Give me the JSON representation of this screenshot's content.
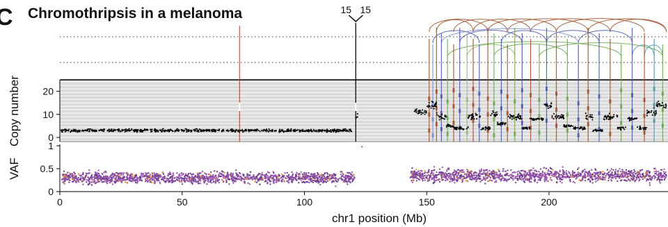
{
  "panel": {
    "letter": "C",
    "title": "Chromothripsis in a melanoma"
  },
  "chart_data": [
    {
      "type": "scatter",
      "panel": "copy-number",
      "ylabel": "Copy number",
      "xlim": [
        0,
        248
      ],
      "ylim": [
        0,
        25
      ],
      "yticks": [
        "0",
        "10",
        "20"
      ],
      "ytick_values": [
        0,
        10,
        20
      ],
      "grid": "horizontal bands",
      "point_color": "#000000",
      "segments": [
        {
          "x": [
            0.5,
            119.5
          ],
          "y": 3
        },
        {
          "x": [
            121,
            121.8
          ],
          "y": 9
        },
        {
          "x": [
            145,
            150
          ],
          "y": 11
        },
        {
          "x": [
            150,
            154
          ],
          "y": 14
        },
        {
          "x": [
            154,
            158
          ],
          "y": 9
        },
        {
          "x": [
            158,
            161
          ],
          "y": 5
        },
        {
          "x": [
            161,
            167
          ],
          "y": 4
        },
        {
          "x": [
            167,
            172
          ],
          "y": 9
        },
        {
          "x": [
            172,
            176
          ],
          "y": 4
        },
        {
          "x": [
            176,
            179
          ],
          "y": 10
        },
        {
          "x": [
            179,
            183
          ],
          "y": 6
        },
        {
          "x": [
            183,
            189
          ],
          "y": 9
        },
        {
          "x": [
            189,
            192
          ],
          "y": 4
        },
        {
          "x": [
            192,
            198
          ],
          "y": 8
        },
        {
          "x": [
            198,
            201
          ],
          "y": 14
        },
        {
          "x": [
            201,
            206
          ],
          "y": 9
        },
        {
          "x": [
            206,
            210
          ],
          "y": 5
        },
        {
          "x": [
            210,
            215
          ],
          "y": 4
        },
        {
          "x": [
            215,
            218
          ],
          "y": 9
        },
        {
          "x": [
            218,
            222
          ],
          "y": 3
        },
        {
          "x": [
            222,
            228
          ],
          "y": 9
        },
        {
          "x": [
            228,
            232
          ],
          "y": 4
        },
        {
          "x": [
            232,
            236
          ],
          "y": 8
        },
        {
          "x": [
            236,
            240
          ],
          "y": 4
        },
        {
          "x": [
            240,
            244
          ],
          "y": 11
        },
        {
          "x": [
            244,
            248
          ],
          "y": 14
        }
      ]
    },
    {
      "type": "scatter",
      "panel": "vaf",
      "ylabel": "VAF",
      "xlabel": "chr1 position (Mb)",
      "xlim": [
        0,
        248
      ],
      "ylim": [
        0,
        1
      ],
      "yticks": [
        "0",
        "0.5",
        "1"
      ],
      "ytick_values": [
        0,
        0.5,
        1
      ],
      "xticks": [
        "0",
        "50",
        "100",
        "150",
        "200"
      ],
      "xtick_values": [
        0,
        50,
        100,
        150,
        200
      ],
      "regions": [
        {
          "x": [
            0.5,
            120.5
          ],
          "mean": 0.3,
          "spread": 0.22
        },
        {
          "x": [
            143,
            248
          ],
          "mean": 0.35,
          "spread": 0.25
        }
      ],
      "point_colors": [
        "#8b4fa0",
        "#6a3d8f",
        "#a35cb5",
        "#e89a3c"
      ]
    },
    {
      "type": "diagram",
      "panel": "rearrangements",
      "breakpoints": [
        {
          "x": 73.5,
          "color": "#a0522d"
        },
        {
          "x": 121.0,
          "color": "#000000"
        },
        {
          "x": 151.0,
          "color": "#a0522d"
        },
        {
          "x": 152.5,
          "color": "#7b8fc8"
        },
        {
          "x": 154.0,
          "color": "#a0522d"
        },
        {
          "x": 156.0,
          "color": "#4a5aa8"
        },
        {
          "x": 158.5,
          "color": "#6aa84f"
        },
        {
          "x": 161.0,
          "color": "#a0522d"
        },
        {
          "x": 163.5,
          "color": "#4a5aa8"
        },
        {
          "x": 166.5,
          "color": "#8fbf6f"
        },
        {
          "x": 169.0,
          "color": "#a0522d"
        },
        {
          "x": 171.5,
          "color": "#4a5aa8"
        },
        {
          "x": 175.0,
          "color": "#a0522d"
        },
        {
          "x": 177.5,
          "color": "#6aa84f"
        },
        {
          "x": 180.5,
          "color": "#4a5aa8"
        },
        {
          "x": 183.0,
          "color": "#a0522d"
        },
        {
          "x": 186.0,
          "color": "#6aa84f"
        },
        {
          "x": 189.0,
          "color": "#4a5aa8"
        },
        {
          "x": 192.5,
          "color": "#a0522d"
        },
        {
          "x": 196.0,
          "color": "#6aa84f"
        },
        {
          "x": 199.0,
          "color": "#4a5aa8"
        },
        {
          "x": 203.0,
          "color": "#a0522d"
        },
        {
          "x": 207.5,
          "color": "#6aa84f"
        },
        {
          "x": 212.0,
          "color": "#4a5aa8"
        },
        {
          "x": 216.0,
          "color": "#a0522d"
        },
        {
          "x": 220.5,
          "color": "#4a5aa8"
        },
        {
          "x": 225.0,
          "color": "#a0522d"
        },
        {
          "x": 229.5,
          "color": "#6aa84f"
        },
        {
          "x": 234.0,
          "color": "#4a5aa8"
        },
        {
          "x": 239.0,
          "color": "#a0522d"
        },
        {
          "x": 243.0,
          "color": "#4a9aa8"
        },
        {
          "x": 246.5,
          "color": "#6aa84f"
        }
      ],
      "arcs": [
        {
          "x1": 151.0,
          "x2": 175.0,
          "color": "#a0522d",
          "level": 1
        },
        {
          "x1": 161.0,
          "x2": 183.0,
          "color": "#a0522d",
          "level": 1
        },
        {
          "x1": 169.0,
          "x2": 192.5,
          "color": "#a0522d",
          "level": 1
        },
        {
          "x1": 175.0,
          "x2": 203.0,
          "color": "#a0522d",
          "level": 1
        },
        {
          "x1": 183.0,
          "x2": 216.0,
          "color": "#a0522d",
          "level": 1
        },
        {
          "x1": 192.5,
          "x2": 225.0,
          "color": "#a0522d",
          "level": 1
        },
        {
          "x1": 203.0,
          "x2": 239.0,
          "color": "#a0522d",
          "level": 1
        },
        {
          "x1": 216.0,
          "x2": 248.0,
          "color": "#a0522d",
          "level": 1
        },
        {
          "x1": 154.0,
          "x2": 169.0,
          "color": "#a0522d",
          "level": 1
        },
        {
          "x1": 225.0,
          "x2": 248.0,
          "color": "#a0522d",
          "level": 1
        },
        {
          "x1": 152.5,
          "x2": 171.5,
          "color": "#4a5aa8",
          "level": 2
        },
        {
          "x1": 163.5,
          "x2": 189.0,
          "color": "#4a5aa8",
          "level": 2
        },
        {
          "x1": 180.5,
          "x2": 199.0,
          "color": "#4a5aa8",
          "level": 2
        },
        {
          "x1": 199.0,
          "x2": 220.5,
          "color": "#4a5aa8",
          "level": 2
        },
        {
          "x1": 212.0,
          "x2": 234.0,
          "color": "#4a5aa8",
          "level": 2
        },
        {
          "x1": 156.0,
          "x2": 212.0,
          "color": "#7b8fc8",
          "level": 2
        },
        {
          "x1": 158.5,
          "x2": 229.5,
          "color": "#6aa84f",
          "level": 3
        },
        {
          "x1": 166.5,
          "x2": 186.0,
          "color": "#8fbf6f",
          "level": 3
        },
        {
          "x1": 177.5,
          "x2": 207.5,
          "color": "#6aa84f",
          "level": 3
        },
        {
          "x1": 196.0,
          "x2": 246.5,
          "color": "#6aa84f",
          "level": 3
        },
        {
          "x1": 234.0,
          "x2": 243.0,
          "color": "#4a9aa8",
          "level": 3
        },
        {
          "x1": 239.0,
          "x2": 246.5,
          "color": "#4a9aa8",
          "level": 3
        }
      ],
      "fold_back": {
        "x": 121.0,
        "labels": [
          "15",
          "15"
        ]
      }
    }
  ]
}
